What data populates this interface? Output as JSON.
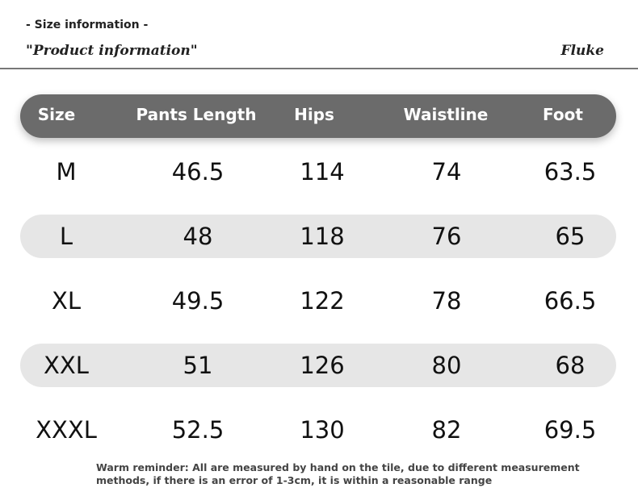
{
  "header": {
    "subtitle": "- Size information -",
    "title": "\"Product information\"",
    "brand": "Fluke"
  },
  "table": {
    "columns": [
      "Size",
      "Pants Length",
      "Hips",
      "Waistline",
      "Foot"
    ],
    "rows": [
      [
        "M",
        "46.5",
        "114",
        "74",
        "63.5"
      ],
      [
        "L",
        "48",
        "118",
        "76",
        "65"
      ],
      [
        "XL",
        "49.5",
        "122",
        "78",
        "66.5"
      ],
      [
        "XXL",
        "51",
        "126",
        "80",
        "68"
      ],
      [
        "XXXL",
        "52.5",
        "130",
        "82",
        "69.5"
      ]
    ]
  },
  "footer": {
    "note": "Warm reminder: All are measured by hand on the tile, due to different measurement methods, if there is an error of 1-3cm, it is within a reasonable range"
  }
}
